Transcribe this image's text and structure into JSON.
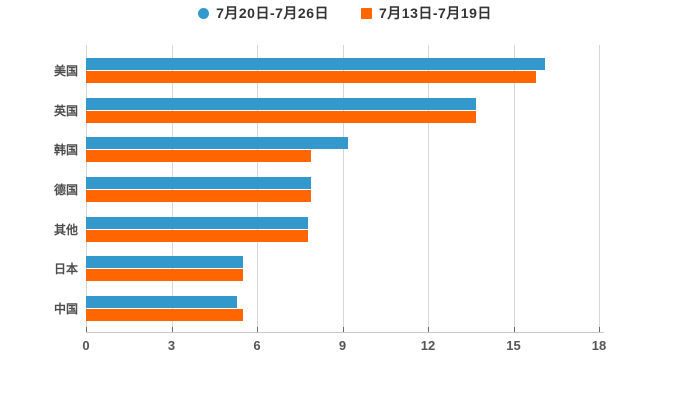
{
  "chart_data": {
    "type": "bar",
    "orientation": "horizontal",
    "title": "",
    "categories": [
      "美国",
      "英国",
      "韩国",
      "德国",
      "其他",
      "日本",
      "中国"
    ],
    "series": [
      {
        "name": "7月20日-7月26日",
        "color": "#3399cc",
        "marker": "circle",
        "values": [
          16.1,
          13.7,
          9.2,
          7.9,
          7.8,
          5.5,
          5.3
        ]
      },
      {
        "name": "7月13日-7月19日",
        "color": "#ff6600",
        "marker": "square",
        "values": [
          15.8,
          13.7,
          7.9,
          7.9,
          7.8,
          5.5,
          5.5
        ]
      }
    ],
    "xlabel": "",
    "ylabel": "",
    "xlim": [
      0,
      18
    ],
    "xticks": [
      0,
      3,
      6,
      9,
      12,
      15,
      18
    ],
    "grid": true,
    "legend_position": "top",
    "background": "#ffffff",
    "gridline_color": "#d6d6d6",
    "axis_line_color": "#c9c9c9",
    "tick_color": "#6b6b6b",
    "label_color": "#4d4d4d"
  }
}
